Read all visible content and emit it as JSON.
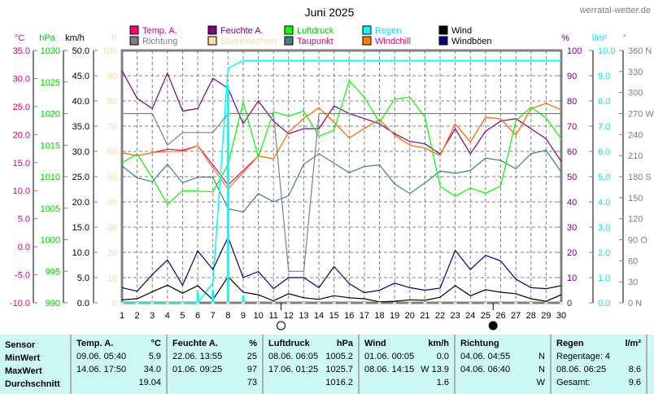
{
  "header": {
    "title": "Juni 2025",
    "site": "werratal-wetter.de"
  },
  "legend": [
    {
      "label": "Temp. A.",
      "color": "#ff0080",
      "text_color": "#e0007a"
    },
    {
      "label": "Richtung",
      "color": "#808080",
      "text_color": "#808080"
    },
    {
      "label": "Feuchte A.",
      "color": "#800080",
      "text_color": "#800080"
    },
    {
      "label": "Sonnenschein",
      "color": "#ffe0a0",
      "text_color": "#ffd8a0"
    },
    {
      "label": "Luftdruck",
      "color": "#00ff00",
      "text_color": "#00d000"
    },
    {
      "label": "Taupunkt",
      "color": "#408080",
      "text_color": "#e0007a"
    },
    {
      "label": "Regen",
      "color": "#00ffff",
      "text_color": "#00e8e8"
    },
    {
      "label": "Windchill",
      "color": "#ff8000",
      "text_color": "#e0007a"
    },
    {
      "label": "Wind",
      "color": "#000000",
      "text_color": "#000000"
    },
    {
      "label": "Windböen",
      "color": "#000080",
      "text_color": "#000000"
    }
  ],
  "axes": {
    "temp": {
      "unit": "°C",
      "ticks": [
        "35.0",
        "30.0",
        "25.0",
        "20.0",
        "15.0",
        "10.0",
        "5.0",
        "0.0",
        "-5.0",
        "-10.0"
      ],
      "min": -10,
      "max": 35,
      "color": "#e0007a"
    },
    "press": {
      "unit": "hPa",
      "ticks": [
        "1030",
        "1025",
        "1020",
        "1015",
        "1010",
        "1005",
        "1000",
        "995",
        "990"
      ],
      "min": 990,
      "max": 1030,
      "color": "#00d000"
    },
    "wind": {
      "unit": "km/h",
      "ticks": [
        "50.0",
        "45.0",
        "40.0",
        "35.0",
        "30.0",
        "25.0",
        "20.0",
        "15.0",
        "10.0",
        "5.0",
        "0.0"
      ],
      "min": 0,
      "max": 50,
      "color": "#000000"
    },
    "sun": {
      "unit": "h",
      "ticks": [
        "100",
        "90",
        "80",
        "70",
        "60",
        "50",
        "40",
        "30",
        "20",
        "10",
        "0"
      ],
      "color": "#ffd8a0"
    },
    "hum": {
      "unit": "%",
      "ticks": [
        "100",
        "90",
        "80",
        "70",
        "60",
        "50",
        "40",
        "30",
        "20",
        "10",
        "0"
      ],
      "color": "#800080"
    },
    "rain": {
      "unit": "l/m²",
      "ticks": [
        "10.0",
        "9.0",
        "8.0",
        "7.0",
        "6.0",
        "5.0",
        "4.0",
        "3.0",
        "2.0",
        "1.0",
        "0.0"
      ],
      "color": "#00e8e8"
    },
    "dir": {
      "unit": "°",
      "ticks": [
        "360 N",
        "330",
        "300",
        "270 W",
        "240",
        "210",
        "180 S",
        "150",
        "120",
        "90  O",
        "60",
        "30",
        "0   N"
      ],
      "color": "#808080"
    }
  },
  "chart_data": {
    "type": "line",
    "title": "Juni 2025",
    "x": [
      1,
      2,
      3,
      4,
      5,
      6,
      7,
      8,
      9,
      10,
      11,
      12,
      13,
      14,
      15,
      16,
      17,
      18,
      19,
      20,
      21,
      22,
      23,
      24,
      25,
      26,
      27,
      28,
      29,
      30
    ],
    "x_tick_labels": [
      "1",
      "2",
      "3",
      "4",
      "5",
      "6",
      "7",
      "8",
      "9",
      "10",
      "11",
      "12",
      "13",
      "14",
      "15",
      "16",
      "17",
      "18",
      "19",
      "20",
      "21",
      "22",
      "23",
      "24",
      "25",
      "26",
      "27",
      "28",
      "29",
      "30"
    ],
    "moon_phases": [
      {
        "day": 11.5,
        "phase": "full"
      },
      {
        "day": 25.5,
        "phase": "new"
      }
    ],
    "series": [
      {
        "name": "Feuchte A.",
        "axis": "hum",
        "color": "#800080",
        "values": [
          92,
          81,
          77,
          91,
          76,
          77,
          89,
          85,
          71,
          80,
          72,
          67,
          69,
          69,
          78,
          75,
          73,
          71,
          67,
          64,
          63,
          59,
          69,
          59,
          68,
          72,
          73,
          69,
          65,
          56
        ]
      },
      {
        "name": "Temp. A.",
        "axis": "temp",
        "color": "#ff0080",
        "values": [
          16.8,
          16.2,
          16.8,
          17.4,
          17.2,
          18.0,
          14.6,
          11.0,
          13.6,
          16.2,
          15.7,
          20.4,
          22.9,
          24.8,
          22.2,
          19.4,
          21.1,
          22.7,
          19.9,
          18.1,
          17.6,
          16.3,
          21.9,
          18.7,
          23.1,
          22.8,
          19.9,
          24.6,
          25.6,
          24.4
        ]
      },
      {
        "name": "Windchill",
        "axis": "temp",
        "color": "#ff8000",
        "values": [
          16.8,
          16.2,
          16.8,
          17.0,
          17.0,
          18.0,
          14.0,
          10.3,
          13.2,
          16.2,
          15.7,
          20.4,
          22.9,
          24.8,
          22.2,
          19.4,
          21.1,
          22.7,
          19.9,
          18.1,
          17.6,
          16.3,
          21.9,
          18.7,
          23.1,
          22.8,
          19.9,
          24.6,
          25.6,
          24.4
        ]
      },
      {
        "name": "Taupunkt",
        "axis": "temp",
        "color": "#408080",
        "values": [
          14.4,
          12.3,
          11.6,
          14.7,
          11.4,
          12.4,
          12.4,
          6.8,
          6.2,
          9.5,
          8.0,
          9.1,
          14.7,
          16.6,
          14.9,
          13.2,
          14.3,
          14.6,
          11.2,
          9.5,
          11.4,
          13.5,
          13.1,
          13.6,
          15.8,
          15.4,
          13.9,
          16.6,
          17.2,
          13.3
        ]
      },
      {
        "name": "Luftdruck",
        "axis": "press",
        "color": "#00ff00",
        "values": [
          1012.2,
          1013.6,
          1009.8,
          1005.6,
          1007.8,
          1007.7,
          1007.6,
          1011.9,
          1021.8,
          1013.1,
          1020.3,
          1019.6,
          1020.4,
          1016.4,
          1017.4,
          1025.2,
          1022.6,
          1018.6,
          1022.3,
          1022.6,
          1019.4,
          1008.5,
          1006.9,
          1008.2,
          1007.4,
          1008.5,
          1018.9,
          1021.0,
          1019.3,
          1016.0
        ]
      },
      {
        "name": "Regen",
        "axis": "rain",
        "color": "#00ffff",
        "values": [
          0,
          0,
          0,
          0,
          0,
          0,
          0.8,
          9.3,
          9.6,
          9.6,
          9.6,
          9.6,
          9.6,
          9.6,
          9.6,
          9.6,
          9.6,
          9.6,
          9.6,
          9.6,
          9.6,
          9.6,
          9.6,
          9.6,
          9.6,
          9.6,
          9.6,
          9.6,
          9.6,
          9.6
        ]
      },
      {
        "name": "Richtung",
        "axis": "dir",
        "color": "#808080",
        "values": [
          270,
          270,
          270,
          225,
          243,
          243,
          243,
          270,
          270,
          270,
          270,
          45,
          45,
          270,
          270,
          270,
          270,
          270,
          270,
          270,
          270,
          270,
          270,
          270,
          270,
          270,
          270,
          270,
          270,
          270
        ]
      },
      {
        "name": "Windböen",
        "axis": "wind",
        "color": "#000080",
        "values": [
          3.0,
          2.3,
          5.6,
          8.5,
          3.5,
          10.3,
          6.6,
          13.0,
          5.0,
          6.2,
          2.8,
          5.0,
          5.0,
          3.0,
          7.2,
          3.8,
          2.0,
          2.5,
          3.9,
          3.0,
          2.5,
          2.9,
          10.4,
          6.6,
          9.4,
          8.3,
          4.7,
          3.0,
          2.8,
          3.4
        ]
      },
      {
        "name": "Wind",
        "axis": "wind",
        "color": "#000000",
        "values": [
          0.6,
          0.8,
          2.2,
          3.5,
          1.9,
          3.4,
          0.6,
          5.2,
          2.1,
          1.6,
          0.4,
          1.8,
          1.0,
          0.7,
          1.4,
          1.0,
          0.8,
          0.2,
          0.3,
          0.6,
          0.5,
          1.1,
          3.4,
          1.4,
          2.6,
          2.1,
          1.8,
          0.8,
          0.3,
          1.6
        ]
      }
    ],
    "xlabel": "",
    "ylabel": "",
    "grid": true
  },
  "table": {
    "row_labels": [
      "Sensor",
      "MinWert",
      "MaxWert",
      "Durchschnitt"
    ],
    "temp": {
      "header": "Temp. A.",
      "unit": "°C",
      "min_time": "09.06.  05:40",
      "min_val": "5.9",
      "max_time": "14.06.  17:50",
      "max_val": "34.0",
      "avg": "19.04"
    },
    "hum": {
      "header": "Feuchte A.",
      "unit": "%",
      "min_time": "22.06.  13:55",
      "min_val": "25",
      "max_time": "01.06.  09:25",
      "max_val": "97",
      "avg": "73"
    },
    "press": {
      "header": "Luftdruck",
      "unit": "hPa",
      "min_time": "08.06.  06:05",
      "min_val": "1005.2",
      "max_time": "17.06.  01:25",
      "max_val": "1025.7",
      "avg": "1016.2"
    },
    "wind": {
      "header": "Wind",
      "unit": "km/h",
      "min_time": "01.06.  00:05",
      "min_val": "0.0",
      "max_time": "08.06.  14:15",
      "max_val": "W 13.9",
      "avg": "1.6"
    },
    "dir": {
      "header": "Richtung",
      "min_time": "04.06.  04:55",
      "min_val": "N",
      "max_time": "04.06.  06:40",
      "max_val": "N",
      "avg": "W"
    },
    "rain": {
      "header": "Regen",
      "unit": "l/m²",
      "row1": "Regentage: 4",
      "max_time": "08.06.  06:25",
      "max_val": "8.6",
      "total_label": "Gesamt:",
      "total_val": "9.6"
    }
  }
}
